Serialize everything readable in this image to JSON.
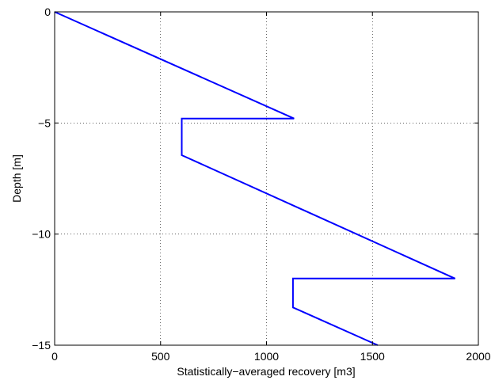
{
  "chart_data": {
    "type": "line",
    "title": "",
    "xlabel": "Statistically−averaged recovery [m3]",
    "ylabel": "Depth [m]",
    "xlim": [
      0,
      2000
    ],
    "ylim": [
      -15,
      0
    ],
    "xticks": [
      0,
      500,
      1000,
      1500,
      2000
    ],
    "xtick_labels": [
      "0",
      "500",
      "1000",
      "1500",
      "2000"
    ],
    "yticks": [
      0,
      -5,
      -10,
      -15
    ],
    "ytick_labels": [
      "0",
      "−5",
      "−10",
      "−15"
    ],
    "grid": true,
    "series": [
      {
        "color": "#0000ff",
        "x": [
          0,
          1130,
          600,
          600,
          1890,
          1125,
          1125,
          1525
        ],
        "y": [
          0,
          -4.8,
          -4.8,
          -6.45,
          -12.0,
          -12.0,
          -13.3,
          -15.0
        ]
      }
    ]
  }
}
